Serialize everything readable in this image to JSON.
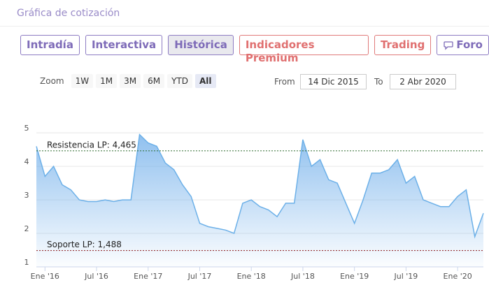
{
  "header": {
    "title": "Gráfica de cotización"
  },
  "tabs": [
    "Intradía",
    "Interactiva",
    "Histórica",
    "Indicadores Premium",
    "Trading",
    "Foro"
  ],
  "zoom": {
    "label": "Zoom",
    "buttons": [
      "1W",
      "1M",
      "3M",
      "6M",
      "YTD",
      "All"
    ]
  },
  "range": {
    "from_label": "From",
    "from": "14 Dic 2015",
    "to_label": "To",
    "to": "2 Abr 2020"
  },
  "chart_data": {
    "type": "area",
    "color": "#6cb0e8",
    "x": [
      "2015-12",
      "2016-01",
      "2016-02",
      "2016-03",
      "2016-04",
      "2016-05",
      "2016-06",
      "2016-07",
      "2016-08",
      "2016-09",
      "2016-10",
      "2016-11",
      "2016-12",
      "2017-01",
      "2017-02",
      "2017-03",
      "2017-04",
      "2017-05",
      "2017-06",
      "2017-07",
      "2017-08",
      "2017-09",
      "2017-10",
      "2017-11",
      "2017-12",
      "2018-01",
      "2018-02",
      "2018-03",
      "2018-04",
      "2018-05",
      "2018-06",
      "2018-07",
      "2018-08",
      "2018-09",
      "2018-10",
      "2018-11",
      "2018-12",
      "2019-01",
      "2019-02",
      "2019-03",
      "2019-04",
      "2019-05",
      "2019-06",
      "2019-07",
      "2019-08",
      "2019-09",
      "2019-10",
      "2019-11",
      "2019-12",
      "2020-01",
      "2020-02",
      "2020-03",
      "2020-04"
    ],
    "values": [
      4.6,
      3.7,
      4.0,
      3.45,
      3.3,
      3.0,
      2.95,
      2.95,
      3.0,
      2.95,
      3.0,
      3.0,
      4.95,
      4.7,
      4.6,
      4.1,
      3.9,
      3.45,
      3.1,
      2.3,
      2.2,
      2.15,
      2.1,
      2.0,
      2.9,
      3.0,
      2.8,
      2.7,
      2.5,
      2.9,
      2.9,
      4.8,
      4.0,
      4.2,
      3.6,
      3.5,
      2.9,
      2.3,
      3.0,
      3.8,
      3.8,
      3.9,
      4.2,
      3.5,
      3.7,
      3.0,
      2.9,
      2.8,
      2.8,
      3.1,
      3.3,
      1.9,
      2.6
    ],
    "xlim": [
      "2015-12",
      "2020-04"
    ],
    "xticks": [
      {
        "value": "2016-01",
        "label": "Ene '16"
      },
      {
        "value": "2016-07",
        "label": "Jul '16"
      },
      {
        "value": "2017-01",
        "label": "Ene '17"
      },
      {
        "value": "2017-07",
        "label": "Jul '17"
      },
      {
        "value": "2018-01",
        "label": "Ene '18"
      },
      {
        "value": "2018-07",
        "label": "Jul '18"
      },
      {
        "value": "2019-01",
        "label": "Ene '19"
      },
      {
        "value": "2019-07",
        "label": "Jul '19"
      },
      {
        "value": "2020-01",
        "label": "Ene '20"
      }
    ],
    "ylim": [
      1,
      5.4
    ],
    "yticks": [
      1,
      2,
      3,
      4,
      5
    ],
    "grid": true,
    "annotations": [
      {
        "value": 4.465,
        "label": "Resistencia LP: 4,465",
        "color": "#2e6b2e"
      },
      {
        "value": 1.488,
        "label": "Soporte LP: 1,488",
        "color": "#8b1a1a"
      }
    ]
  }
}
